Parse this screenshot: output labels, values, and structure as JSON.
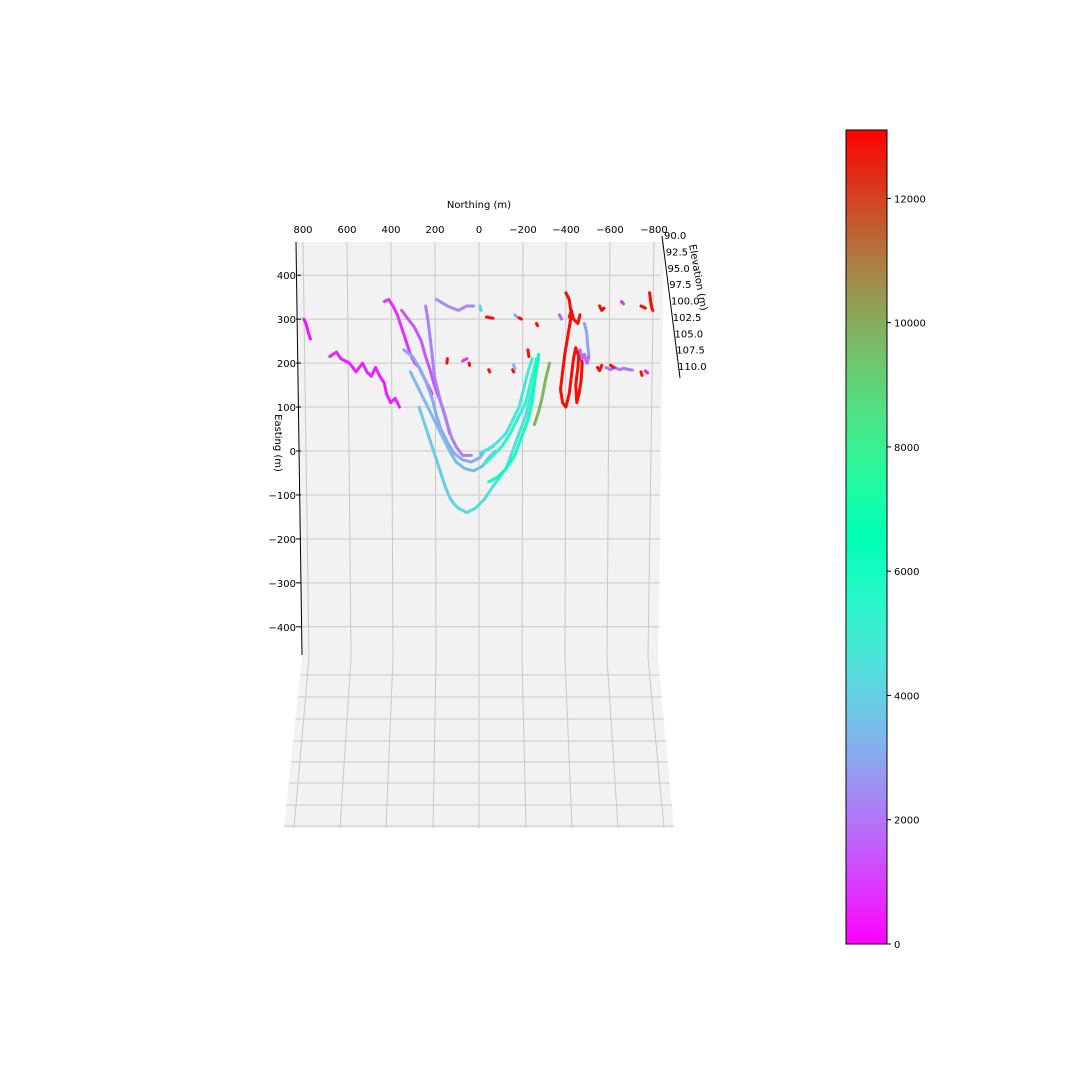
{
  "chart_data": {
    "type": "line3d",
    "x_axis": {
      "label": "Northing (m)",
      "ticks": [
        800,
        600,
        400,
        200,
        0,
        -200,
        -400,
        -600,
        -800
      ],
      "tick_labels": [
        "800",
        "600",
        "400",
        "200",
        "0",
        "−200",
        "−400",
        "−600",
        "−800"
      ],
      "range": [
        800,
        -800
      ]
    },
    "y_axis": {
      "label": "Easting (m)",
      "ticks": [
        400,
        300,
        200,
        100,
        0,
        -100,
        -200,
        -300,
        -400
      ],
      "tick_labels": [
        "400",
        "300",
        "200",
        "100",
        "0",
        "−100",
        "−200",
        "−300",
        "−400"
      ],
      "range": [
        450,
        -450
      ]
    },
    "z_axis": {
      "label": "Elevation (m)",
      "ticks": [
        90.0,
        92.5,
        95.0,
        97.5,
        100.0,
        102.5,
        105.0,
        107.5,
        110.0
      ],
      "tick_labels": [
        "90.0",
        "92.5",
        "95.0",
        "97.5",
        "100.0",
        "102.5",
        "105.0",
        "107.5",
        "110.0"
      ],
      "range": [
        90,
        110
      ]
    },
    "colorbar": {
      "ticks": [
        0,
        2000,
        4000,
        6000,
        8000,
        10000,
        12000
      ],
      "tick_labels": [
        "0",
        "2000",
        "4000",
        "6000",
        "8000",
        "10000",
        "12000"
      ],
      "range": [
        0,
        13100
      ],
      "colormap": "rainbow"
    },
    "grid": true,
    "series": [
      {
        "c": 300,
        "pts": [
          [
            810,
            300
          ],
          [
            800,
            290
          ],
          [
            790,
            270
          ],
          [
            780,
            255
          ]
        ]
      },
      {
        "c": 500,
        "pts": [
          [
            690,
            215
          ],
          [
            660,
            225
          ],
          [
            640,
            210
          ],
          [
            600,
            200
          ],
          [
            570,
            180
          ],
          [
            540,
            200
          ],
          [
            520,
            180
          ],
          [
            500,
            170
          ],
          [
            480,
            190
          ],
          [
            460,
            170
          ],
          [
            440,
            155
          ],
          [
            430,
            130
          ],
          [
            410,
            110
          ],
          [
            390,
            120
          ],
          [
            370,
            100
          ]
        ]
      },
      {
        "c": 800,
        "pts": [
          [
            440,
            340
          ],
          [
            420,
            345
          ],
          [
            400,
            330
          ],
          [
            380,
            310
          ],
          [
            360,
            280
          ],
          [
            340,
            250
          ],
          [
            320,
            220
          ],
          [
            300,
            200
          ],
          [
            280,
            190
          ],
          [
            260,
            170
          ],
          [
            240,
            150
          ],
          [
            220,
            130
          ]
        ]
      },
      {
        "c": 1400,
        "pts": [
          [
            360,
            320
          ],
          [
            330,
            300
          ],
          [
            300,
            280
          ],
          [
            270,
            250
          ],
          [
            250,
            215
          ],
          [
            230,
            185
          ],
          [
            210,
            150
          ],
          [
            180,
            110
          ],
          [
            160,
            80
          ],
          [
            150,
            60
          ],
          [
            140,
            40
          ]
        ]
      },
      {
        "c": 2200,
        "pts": [
          [
            250,
            330
          ],
          [
            240,
            300
          ],
          [
            230,
            260
          ],
          [
            220,
            220
          ],
          [
            210,
            170
          ],
          [
            180,
            110
          ],
          [
            150,
            60
          ],
          [
            130,
            30
          ],
          [
            110,
            10
          ],
          [
            80,
            -10
          ],
          [
            40,
            -10
          ]
        ]
      },
      {
        "c": 2400,
        "pts": [
          [
            200,
            345
          ],
          [
            150,
            330
          ],
          [
            100,
            320
          ],
          [
            60,
            330
          ],
          [
            30,
            330
          ]
        ]
      },
      {
        "c": 3000,
        "pts": [
          [
            350,
            230
          ],
          [
            310,
            215
          ],
          [
            280,
            190
          ],
          [
            250,
            160
          ],
          [
            220,
            120
          ],
          [
            200,
            80
          ],
          [
            180,
            50
          ],
          [
            150,
            20
          ],
          [
            120,
            -5
          ],
          [
            80,
            -20
          ],
          [
            40,
            -25
          ],
          [
            0,
            -15
          ],
          [
            -20,
            0
          ],
          [
            -60,
            10
          ]
        ]
      },
      {
        "c": 3400,
        "pts": [
          [
            320,
            180
          ],
          [
            290,
            150
          ],
          [
            260,
            120
          ],
          [
            230,
            90
          ],
          [
            200,
            60
          ],
          [
            170,
            30
          ],
          [
            140,
            0
          ],
          [
            110,
            -25
          ],
          [
            70,
            -40
          ],
          [
            30,
            -45
          ],
          [
            -10,
            -35
          ],
          [
            -40,
            -15
          ],
          [
            -70,
            0
          ]
        ]
      },
      {
        "c": 3800,
        "pts": [
          [
            280,
            100
          ],
          [
            260,
            70
          ],
          [
            240,
            40
          ],
          [
            220,
            10
          ],
          [
            200,
            -20
          ],
          [
            180,
            -50
          ],
          [
            160,
            -80
          ],
          [
            140,
            -105
          ],
          [
            120,
            -120
          ]
        ]
      },
      {
        "c": 4300,
        "pts": [
          [
            120,
            -120
          ],
          [
            100,
            -130
          ],
          [
            60,
            -140
          ],
          [
            20,
            -130
          ],
          [
            -20,
            -110
          ],
          [
            -60,
            -80
          ],
          [
            -90,
            -60
          ],
          [
            -120,
            -40
          ],
          [
            -150,
            0
          ],
          [
            -180,
            40
          ],
          [
            -210,
            80
          ],
          [
            -230,
            120
          ],
          [
            -250,
            160
          ],
          [
            -270,
            210
          ]
        ]
      },
      {
        "c": 4700,
        "pts": [
          [
            0,
            -5
          ],
          [
            -40,
            5
          ],
          [
            -80,
            20
          ],
          [
            -120,
            40
          ],
          [
            -150,
            70
          ],
          [
            -180,
            100
          ],
          [
            -200,
            140
          ],
          [
            -220,
            180
          ],
          [
            -240,
            210
          ]
        ]
      },
      {
        "c": 5500,
        "pts": [
          [
            -20,
            -30
          ],
          [
            -60,
            -10
          ],
          [
            -100,
            10
          ],
          [
            -140,
            40
          ],
          [
            -180,
            80
          ],
          [
            -210,
            110
          ],
          [
            -230,
            150
          ],
          [
            -245,
            180
          ],
          [
            -260,
            210
          ]
        ]
      },
      {
        "c": 6300,
        "pts": [
          [
            -40,
            -70
          ],
          [
            -80,
            -60
          ],
          [
            -120,
            -40
          ],
          [
            -160,
            -10
          ],
          [
            -190,
            30
          ],
          [
            -220,
            70
          ],
          [
            -240,
            110
          ],
          [
            -250,
            150
          ],
          [
            -260,
            190
          ],
          [
            -270,
            220
          ]
        ]
      },
      {
        "c": 9800,
        "pts": [
          [
            -250,
            60
          ],
          [
            -270,
            90
          ],
          [
            -285,
            120
          ],
          [
            -300,
            160
          ],
          [
            -320,
            200
          ]
        ]
      },
      {
        "c": 12900,
        "pts": [
          [
            -395,
            360
          ],
          [
            -410,
            345
          ],
          [
            -420,
            310
          ],
          [
            -410,
            280
          ],
          [
            -400,
            250
          ],
          [
            -390,
            220
          ],
          [
            -380,
            180
          ],
          [
            -370,
            140
          ],
          [
            -380,
            110
          ],
          [
            -395,
            100
          ],
          [
            -410,
            130
          ],
          [
            -420,
            170
          ],
          [
            -430,
            210
          ],
          [
            -440,
            235
          ],
          [
            -450,
            220
          ]
        ]
      },
      {
        "c": 12900,
        "pts": [
          [
            -460,
            230
          ],
          [
            -470,
            200
          ],
          [
            -465,
            160
          ],
          [
            -455,
            130
          ],
          [
            -445,
            110
          ],
          [
            -440,
            150
          ],
          [
            -450,
            190
          ],
          [
            -455,
            225
          ]
        ]
      },
      {
        "c": 12800,
        "pts": [
          [
            -460,
            310
          ],
          [
            -450,
            290
          ],
          [
            -430,
            300
          ],
          [
            -420,
            320
          ],
          [
            -410,
            305
          ]
        ]
      },
      {
        "c": 2900,
        "pts": [
          [
            -480,
            290
          ],
          [
            -490,
            270
          ],
          [
            -495,
            240
          ],
          [
            -500,
            220
          ],
          [
            -495,
            200
          ]
        ]
      },
      {
        "c": 1800,
        "pts": [
          [
            -460,
            230
          ],
          [
            -470,
            210
          ],
          [
            -480,
            220
          ],
          [
            -490,
            200
          ],
          [
            -500,
            215
          ]
        ]
      },
      {
        "c": 2000,
        "pts": [
          [
            -580,
            190
          ],
          [
            -600,
            185
          ],
          [
            -620,
            190
          ],
          [
            -640,
            185
          ],
          [
            -660,
            188
          ],
          [
            -680,
            186
          ],
          [
            -700,
            184
          ]
        ]
      },
      {
        "c": 12900,
        "pts": [
          [
            -540,
            190
          ],
          [
            -550,
            183
          ],
          [
            -560,
            195
          ]
        ]
      },
      {
        "c": 12900,
        "pts": [
          [
            -780,
            360
          ],
          [
            -785,
            340
          ],
          [
            -790,
            325
          ],
          [
            -795,
            320
          ]
        ]
      },
      {
        "c": 13000,
        "pts": [
          [
            -550,
            330
          ],
          [
            -560,
            320
          ],
          [
            -570,
            325
          ]
        ]
      },
      {
        "c": 800,
        "pts": [
          [
            -650,
            340
          ],
          [
            -660,
            335
          ]
        ]
      },
      {
        "c": 12900,
        "pts": [
          [
            -740,
            330
          ],
          [
            -760,
            325
          ]
        ]
      },
      {
        "c": 12900,
        "pts": [
          [
            -740,
            180
          ],
          [
            -745,
            172
          ]
        ]
      },
      {
        "c": 300,
        "pts": [
          [
            -760,
            182
          ],
          [
            -770,
            178
          ]
        ]
      },
      {
        "c": 12900,
        "pts": [
          [
            -600,
            195
          ],
          [
            -615,
            190
          ]
        ]
      },
      {
        "c": 12900,
        "pts": [
          [
            -30,
            305
          ],
          [
            -60,
            302
          ]
        ]
      },
      {
        "c": 3000,
        "pts": [
          [
            -160,
            310
          ],
          [
            -170,
            305
          ]
        ]
      },
      {
        "c": 12900,
        "pts": [
          [
            -180,
            303
          ],
          [
            -190,
            300
          ]
        ]
      },
      {
        "c": 12900,
        "pts": [
          [
            -260,
            290
          ],
          [
            -265,
            285
          ]
        ]
      },
      {
        "c": 12900,
        "pts": [
          [
            -220,
            230
          ],
          [
            -225,
            215
          ]
        ]
      },
      {
        "c": 12900,
        "pts": [
          [
            150,
            210
          ],
          [
            152,
            200
          ]
        ]
      },
      {
        "c": 12900,
        "pts": [
          [
            50,
            200
          ],
          [
            48,
            195
          ]
        ]
      },
      {
        "c": 12900,
        "pts": [
          [
            -40,
            185
          ],
          [
            -45,
            180
          ]
        ]
      },
      {
        "c": 4000,
        "pts": [
          [
            0,
            330
          ],
          [
            -5,
            320
          ]
        ]
      },
      {
        "c": 12900,
        "pts": [
          [
            -150,
            185
          ],
          [
            -155,
            180
          ]
        ]
      },
      {
        "c": 3000,
        "pts": [
          [
            -155,
            196
          ],
          [
            -160,
            187
          ]
        ]
      },
      {
        "c": 1600,
        "pts": [
          [
            -365,
            310
          ],
          [
            -375,
            300
          ]
        ]
      },
      {
        "c": 900,
        "pts": [
          [
            60,
            210
          ],
          [
            80,
            205
          ]
        ]
      }
    ]
  }
}
